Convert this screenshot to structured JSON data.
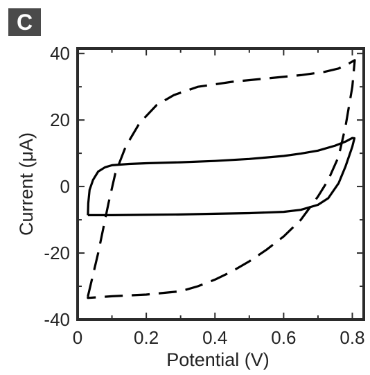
{
  "panel_label": "C",
  "chart_data": {
    "type": "line",
    "title": "",
    "xlabel": "Potential (V)",
    "ylabel": "Current (μA)",
    "xlim": [
      0,
      0.8333
    ],
    "ylim": [
      -40,
      41.5
    ],
    "x_ticks": [
      0,
      0.2,
      0.4,
      0.6,
      0.8
    ],
    "x_tick_labels": [
      "0",
      "0.2",
      "0.4",
      "0.6",
      "0.8"
    ],
    "y_ticks": [
      -40,
      -20,
      0,
      20,
      40
    ],
    "y_tick_labels": [
      "-40",
      "-20",
      "0",
      "20",
      "40"
    ],
    "grid": false,
    "legend": "none",
    "series": [
      {
        "style": "solid",
        "color": "#000000",
        "x": [
          0.03,
          0.031,
          0.035,
          0.045,
          0.06,
          0.08,
          0.1,
          0.15,
          0.2,
          0.3,
          0.4,
          0.5,
          0.6,
          0.65,
          0.7,
          0.75,
          0.78,
          0.8,
          0.806,
          0.8,
          0.78,
          0.76,
          0.73,
          0.7,
          0.65,
          0.6,
          0.5,
          0.4,
          0.3,
          0.2,
          0.1,
          0.05,
          0.03,
          0.03
        ],
        "y": [
          -8.6,
          -5,
          -1,
          2,
          4.5,
          5.8,
          6.4,
          6.8,
          7.0,
          7.3,
          7.7,
          8.3,
          9.2,
          9.9,
          10.8,
          12.3,
          13.5,
          14.6,
          14.5,
          12,
          6,
          1,
          -3.5,
          -5.5,
          -7.0,
          -7.6,
          -8.0,
          -8.2,
          -8.4,
          -8.5,
          -8.6,
          -8.6,
          -8.6,
          -8.6
        ]
      },
      {
        "style": "dashed",
        "color": "#000000",
        "x": [
          0.03,
          0.06,
          0.09,
          0.11,
          0.14,
          0.18,
          0.23,
          0.28,
          0.35,
          0.45,
          0.55,
          0.65,
          0.72,
          0.76,
          0.79,
          0.807,
          0.8,
          0.78,
          0.76,
          0.73,
          0.7,
          0.65,
          0.6,
          0.55,
          0.5,
          0.45,
          0.4,
          0.35,
          0.3,
          0.2,
          0.1,
          0.03,
          0.03
        ],
        "y": [
          -33,
          -20,
          -5,
          4,
          12,
          19,
          24.5,
          27.5,
          30,
          31.5,
          32.5,
          33.5,
          34.5,
          35.5,
          37,
          38,
          30,
          18,
          9,
          2,
          -3,
          -10,
          -15,
          -19,
          -22.5,
          -25.5,
          -28,
          -30,
          -31.5,
          -32.5,
          -33,
          -33.5,
          -33
        ]
      }
    ]
  }
}
